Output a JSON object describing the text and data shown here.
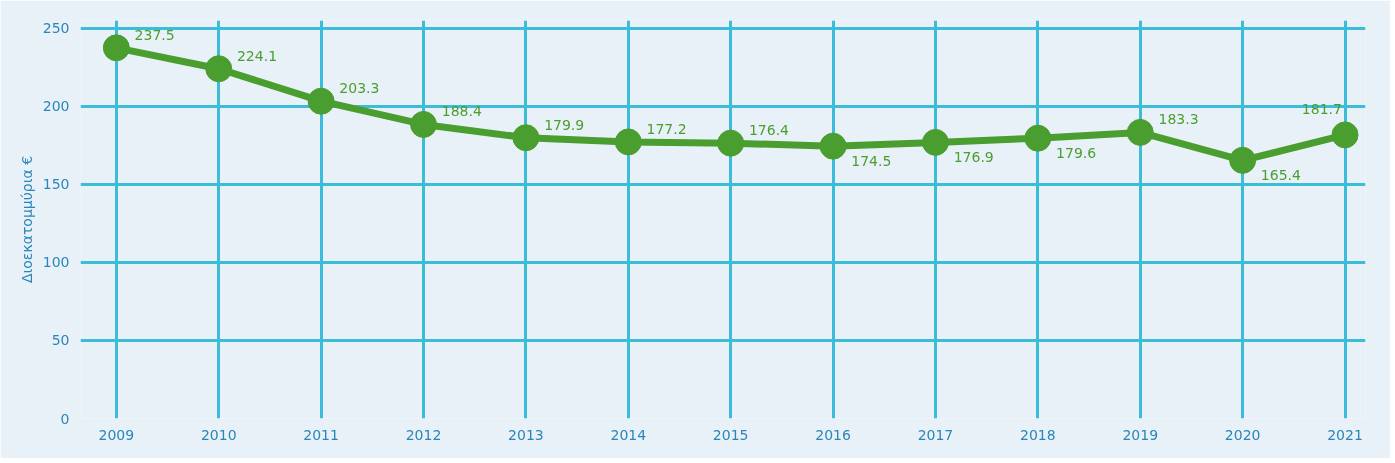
{
  "chart_data": {
    "type": "line",
    "ylabel": "Διοεκατομμύρια €",
    "categories": [
      "2009",
      "2010",
      "2011",
      "2012",
      "2013",
      "2014",
      "2015",
      "2016",
      "2017",
      "2018",
      "2019",
      "2020",
      "2021"
    ],
    "series": [
      {
        "color": "#4a9e2f",
        "values": [
          237.5,
          224.1,
          203.3,
          188.4,
          179.9,
          177.2,
          176.4,
          174.5,
          176.9,
          179.6,
          183.3,
          165.4,
          181.7
        ]
      }
    ],
    "ylim": [
      0,
      255
    ],
    "yticks": [
      0,
      50,
      100,
      150,
      200,
      250
    ],
    "grid": true,
    "marker": "circle",
    "line_style": "solid",
    "data_labels": true
  }
}
